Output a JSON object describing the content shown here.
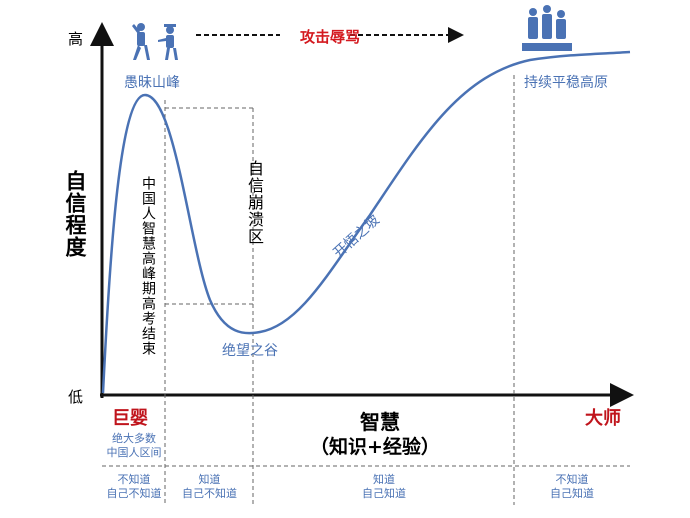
{
  "y_axis": {
    "label": "自信程度",
    "high": "高",
    "low": "低"
  },
  "x_axis": {
    "label_line1": "智慧",
    "label_line2": "（知识+经验）",
    "left": "巨婴",
    "right": "大师"
  },
  "top_arrow": "攻击辱骂",
  "curve_labels": {
    "peak": "愚昧山峰",
    "valley": "绝望之谷",
    "slope": "开悟之坡",
    "plateau": "持续平稳高原",
    "collapse": "自信崩溃区",
    "peak_note": "中国人智慧高峰期高考结束"
  },
  "zone_note": [
    "绝大多数",
    "中国人区间"
  ],
  "stages": [
    {
      "line1": "不知道",
      "line2": "自己不知道"
    },
    {
      "line1": "知道",
      "line2": "自己不知道"
    },
    {
      "line1": "知道",
      "line2": "自己知道"
    },
    {
      "line1": "不知道",
      "line2": "自己知道"
    }
  ],
  "colors": {
    "curve": "#4a72b4",
    "accent": "#c0141c",
    "axis": "#111111"
  }
}
